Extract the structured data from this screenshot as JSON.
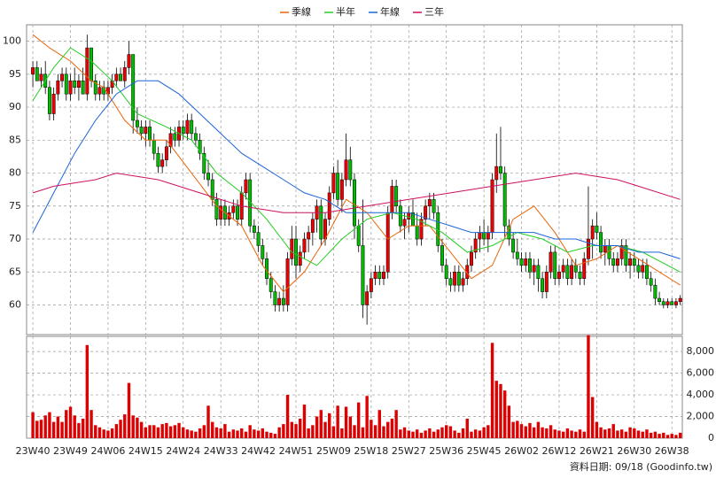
{
  "chart_data": {
    "type": "candlestick",
    "legend": "top",
    "grid": true,
    "xlim": [
      -1.5,
      155.5
    ],
    "xticks": [
      {
        "value": 0,
        "label": "23W40"
      },
      {
        "value": 9,
        "label": "23W49"
      },
      {
        "value": 18,
        "label": "24W06"
      },
      {
        "value": 27,
        "label": "24W15"
      },
      {
        "value": 36,
        "label": "24W24"
      },
      {
        "value": 45,
        "label": "24W33"
      },
      {
        "value": 54,
        "label": "24W42"
      },
      {
        "value": 63,
        "label": "24W51"
      },
      {
        "value": 72,
        "label": "25W09"
      },
      {
        "value": 81,
        "label": "25W18"
      },
      {
        "value": 90,
        "label": "25W27"
      },
      {
        "value": 99,
        "label": "25W36"
      },
      {
        "value": 108,
        "label": "25W45"
      },
      {
        "value": 117,
        "label": "26W02"
      },
      {
        "value": 126,
        "label": "26W12"
      },
      {
        "value": 135,
        "label": "26W21"
      },
      {
        "value": 144,
        "label": "26W30"
      },
      {
        "value": 153,
        "label": "26W38"
      }
    ],
    "ylim": [
      55.5,
      102.5
    ],
    "yticks": [
      60,
      65,
      70,
      75,
      80,
      85,
      90,
      95,
      100
    ],
    "candles": {
      "up_color": "#ee0000",
      "down_color": "#00bb00",
      "values": [
        [
          95,
          97,
          93,
          96
        ],
        [
          96,
          97,
          94,
          94
        ],
        [
          94,
          96,
          93,
          95
        ],
        [
          95,
          97,
          92,
          93
        ],
        [
          93,
          94,
          88,
          89
        ],
        [
          89,
          93,
          88,
          92
        ],
        [
          92,
          95,
          91,
          94
        ],
        [
          94,
          96,
          93,
          95
        ],
        [
          95,
          96,
          91,
          92
        ],
        [
          92,
          95,
          91,
          94
        ],
        [
          94,
          96,
          92,
          93
        ],
        [
          93,
          95,
          91,
          94
        ],
        [
          94,
          96,
          92,
          92
        ],
        [
          92,
          101,
          91,
          99
        ],
        [
          99,
          99,
          93,
          94
        ],
        [
          94,
          95,
          91,
          92
        ],
        [
          92,
          94,
          91,
          93
        ],
        [
          93,
          94,
          91,
          92
        ],
        [
          92,
          94,
          91,
          93
        ],
        [
          93,
          95,
          92,
          94
        ],
        [
          94,
          96,
          93,
          95
        ],
        [
          95,
          96,
          94,
          94
        ],
        [
          94,
          97,
          93,
          96
        ],
        [
          96,
          100,
          95,
          98
        ],
        [
          98,
          98,
          86,
          88
        ],
        [
          88,
          90,
          86,
          87
        ],
        [
          87,
          88,
          85,
          86
        ],
        [
          86,
          88,
          84,
          87
        ],
        [
          87,
          88,
          84,
          85
        ],
        [
          85,
          86,
          82,
          83
        ],
        [
          83,
          84,
          80,
          81
        ],
        [
          81,
          83,
          80,
          82
        ],
        [
          82,
          85,
          81,
          84
        ],
        [
          84,
          87,
          83,
          86
        ],
        [
          86,
          87,
          84,
          85
        ],
        [
          85,
          88,
          84,
          87
        ],
        [
          87,
          88,
          85,
          86
        ],
        [
          86,
          89,
          85,
          88
        ],
        [
          88,
          89,
          85,
          86
        ],
        [
          86,
          87,
          84,
          85
        ],
        [
          85,
          86,
          82,
          83
        ],
        [
          83,
          84,
          79,
          80
        ],
        [
          80,
          82,
          78,
          79
        ],
        [
          79,
          80,
          75,
          76
        ],
        [
          76,
          77,
          72,
          73
        ],
        [
          73,
          76,
          72,
          75
        ],
        [
          75,
          76,
          72,
          73
        ],
        [
          73,
          75,
          72,
          74
        ],
        [
          74,
          76,
          73,
          75
        ],
        [
          75,
          76,
          72,
          73
        ],
        [
          73,
          78,
          72,
          77
        ],
        [
          77,
          80,
          76,
          79
        ],
        [
          79,
          80,
          71,
          72
        ],
        [
          72,
          73,
          70,
          71
        ],
        [
          71,
          72,
          68,
          69
        ],
        [
          69,
          70,
          66,
          67
        ],
        [
          67,
          68,
          63,
          64
        ],
        [
          64,
          65,
          61,
          62
        ],
        [
          62,
          63,
          59,
          60
        ],
        [
          60,
          62,
          59,
          61
        ],
        [
          61,
          63,
          59,
          60
        ],
        [
          60,
          68,
          59,
          67
        ],
        [
          67,
          72,
          66,
          70
        ],
        [
          70,
          72,
          64,
          66
        ],
        [
          66,
          69,
          65,
          68
        ],
        [
          68,
          71,
          67,
          70
        ],
        [
          70,
          72,
          68,
          71
        ],
        [
          71,
          74,
          69,
          73
        ],
        [
          73,
          76,
          71,
          75
        ],
        [
          75,
          76,
          69,
          70
        ],
        [
          70,
          74,
          69,
          73
        ],
        [
          73,
          78,
          72,
          77
        ],
        [
          77,
          81,
          76,
          80
        ],
        [
          80,
          82,
          75,
          76
        ],
        [
          76,
          80,
          74,
          79
        ],
        [
          79,
          86,
          78,
          82
        ],
        [
          82,
          84,
          78,
          79
        ],
        [
          79,
          80,
          70,
          72
        ],
        [
          72,
          73,
          68,
          69
        ],
        [
          69,
          76,
          58,
          60
        ],
        [
          60,
          63,
          57,
          62
        ],
        [
          62,
          65,
          61,
          64
        ],
        [
          64,
          66,
          63,
          65
        ],
        [
          65,
          66,
          63,
          64
        ],
        [
          64,
          66,
          63,
          65
        ],
        [
          65,
          75,
          64,
          74
        ],
        [
          74,
          79,
          73,
          78
        ],
        [
          78,
          79,
          74,
          75
        ],
        [
          75,
          76,
          71,
          72
        ],
        [
          72,
          74,
          70,
          73
        ],
        [
          73,
          75,
          71,
          74
        ],
        [
          74,
          76,
          72,
          72
        ],
        [
          72,
          74,
          69,
          70
        ],
        [
          70,
          74,
          69,
          73
        ],
        [
          73,
          76,
          72,
          75
        ],
        [
          75,
          77,
          73,
          76
        ],
        [
          76,
          77,
          73,
          74
        ],
        [
          74,
          75,
          68,
          69
        ],
        [
          69,
          70,
          65,
          66
        ],
        [
          66,
          67,
          63,
          64
        ],
        [
          64,
          65,
          62,
          63
        ],
        [
          63,
          66,
          62,
          65
        ],
        [
          65,
          66,
          62,
          63
        ],
        [
          63,
          65,
          62,
          64
        ],
        [
          64,
          67,
          63,
          66
        ],
        [
          66,
          69,
          65,
          68
        ],
        [
          68,
          71,
          67,
          70
        ],
        [
          70,
          72,
          68,
          71
        ],
        [
          71,
          73,
          69,
          70
        ],
        [
          70,
          72,
          68,
          71
        ],
        [
          71,
          80,
          70,
          79
        ],
        [
          79,
          86,
          77,
          81
        ],
        [
          81,
          87,
          79,
          80
        ],
        [
          80,
          81,
          70,
          72
        ],
        [
          72,
          73,
          69,
          70
        ],
        [
          70,
          71,
          67,
          68
        ],
        [
          68,
          70,
          66,
          67
        ],
        [
          67,
          68,
          65,
          66
        ],
        [
          66,
          68,
          65,
          67
        ],
        [
          67,
          68,
          64,
          65
        ],
        [
          65,
          67,
          63,
          66
        ],
        [
          66,
          67,
          62,
          64
        ],
        [
          64,
          65,
          61,
          62
        ],
        [
          62,
          66,
          61,
          65
        ],
        [
          65,
          69,
          64,
          68
        ],
        [
          68,
          69,
          63,
          64
        ],
        [
          64,
          66,
          63,
          65
        ],
        [
          65,
          67,
          64,
          66
        ],
        [
          66,
          67,
          63,
          64
        ],
        [
          64,
          67,
          63,
          66
        ],
        [
          66,
          67,
          64,
          65
        ],
        [
          65,
          66,
          63,
          64
        ],
        [
          64,
          68,
          63,
          67
        ],
        [
          67,
          78,
          66,
          70
        ],
        [
          70,
          73,
          67,
          72
        ],
        [
          72,
          74,
          70,
          71
        ],
        [
          71,
          72,
          67,
          68
        ],
        [
          68,
          70,
          66,
          69
        ],
        [
          69,
          70,
          66,
          67
        ],
        [
          67,
          68,
          65,
          66
        ],
        [
          66,
          68,
          65,
          67
        ],
        [
          67,
          70,
          66,
          69
        ],
        [
          69,
          70,
          65,
          66
        ],
        [
          66,
          68,
          64,
          67
        ],
        [
          67,
          68,
          65,
          66
        ],
        [
          66,
          67,
          64,
          65
        ],
        [
          65,
          67,
          64,
          66
        ],
        [
          66,
          67,
          63,
          64
        ],
        [
          64,
          65,
          62,
          63
        ],
        [
          63,
          64,
          60,
          61
        ],
        [
          61,
          62,
          60,
          60.5
        ],
        [
          60.5,
          61,
          59.5,
          60
        ],
        [
          60,
          61,
          59.5,
          60.5
        ],
        [
          60.5,
          61,
          60,
          60
        ],
        [
          60,
          61,
          59.5,
          60.5
        ],
        [
          60.5,
          61.5,
          60,
          61
        ]
      ]
    },
    "series": [
      {
        "name": "季線",
        "color": "#e8650a",
        "x": [
          0,
          4,
          9,
          14,
          17,
          22,
          27,
          32,
          38,
          44,
          50,
          55,
          60,
          65,
          70,
          75,
          80,
          85,
          90,
          95,
          100,
          105,
          110,
          115,
          120,
          125,
          130,
          135,
          140,
          145,
          150,
          155
        ],
        "values": [
          101,
          99,
          97,
          94,
          93,
          88,
          85,
          85,
          80,
          75,
          72,
          66,
          62,
          65,
          70,
          76,
          74,
          70,
          72,
          72,
          68,
          64,
          66,
          73,
          75,
          71,
          66,
          67,
          69,
          67,
          65,
          63
        ]
      },
      {
        "name": "半年",
        "color": "#22cc22",
        "x": [
          0,
          5,
          9,
          14,
          19,
          25,
          32,
          38,
          44,
          50,
          56,
          62,
          68,
          74,
          80,
          86,
          92,
          98,
          104,
          110,
          116,
          122,
          128,
          134,
          140,
          146,
          152,
          155
        ],
        "values": [
          91,
          96,
          99,
          97,
          94,
          89,
          87,
          85,
          80,
          77,
          73,
          68,
          66,
          70,
          73,
          74,
          73,
          71,
          68,
          69,
          71,
          70,
          68,
          69,
          69,
          68,
          66,
          65
        ]
      },
      {
        "name": "年線",
        "color": "#1c64d8",
        "x": [
          0,
          5,
          10,
          15,
          20,
          25,
          30,
          35,
          40,
          45,
          50,
          55,
          60,
          65,
          70,
          75,
          80,
          85,
          90,
          95,
          100,
          105,
          110,
          115,
          120,
          125,
          130,
          135,
          140,
          145,
          150,
          155
        ],
        "values": [
          71,
          77,
          83,
          88,
          92,
          94,
          94,
          92,
          89,
          86,
          83,
          81,
          79,
          77,
          76,
          74,
          74,
          74,
          74,
          73,
          72,
          71,
          71,
          71,
          71,
          70,
          70,
          69,
          69,
          68,
          68,
          67
        ]
      },
      {
        "name": "三年",
        "color": "#cc1060",
        "x": [
          0,
          5,
          15,
          20,
          30,
          40,
          50,
          60,
          70,
          80,
          90,
          100,
          110,
          120,
          130,
          140,
          145,
          155
        ],
        "values": [
          77,
          78,
          79,
          80,
          79,
          77,
          75,
          74,
          74,
          75,
          76,
          77,
          78,
          79,
          80,
          79,
          78,
          76
        ]
      }
    ],
    "volume": {
      "color": "#dd0000",
      "ylim": [
        0,
        9400
      ],
      "yticks": [
        0,
        {
          "value": 2000,
          "label": "2,000"
        },
        {
          "value": 4000,
          "label": "4,000"
        },
        {
          "value": 6000,
          "label": "6,000"
        },
        {
          "value": 8000,
          "label": "8,000"
        }
      ],
      "values": [
        2400,
        1600,
        1700,
        2100,
        2400,
        1500,
        2000,
        1500,
        2600,
        2900,
        2100,
        1400,
        1800,
        8600,
        2600,
        1200,
        1000,
        800,
        700,
        900,
        1300,
        1700,
        2200,
        5100,
        2100,
        1900,
        1500,
        1000,
        1200,
        1200,
        1000,
        1300,
        1400,
        1100,
        1200,
        1400,
        1000,
        800,
        700,
        600,
        900,
        1200,
        3000,
        1500,
        1000,
        900,
        1300,
        600,
        800,
        700,
        900,
        600,
        1200,
        800,
        700,
        900,
        600,
        500,
        400,
        1000,
        1300,
        4000,
        1500,
        1300,
        1800,
        3100,
        900,
        1200,
        2000,
        2600,
        1500,
        2300,
        1100,
        3000,
        900,
        2900,
        2000,
        1200,
        3300,
        1000,
        3900,
        1700,
        1200,
        2600,
        1100,
        1500,
        1800,
        2600,
        800,
        1000,
        700,
        600,
        800,
        500,
        700,
        900,
        600,
        800,
        1000,
        1200,
        1100,
        700,
        500,
        900,
        1800,
        600,
        800,
        700,
        1000,
        1200,
        8800,
        5300,
        5000,
        4400,
        3000,
        1500,
        1600,
        1300,
        1100,
        1400,
        1000,
        1500,
        1000,
        900,
        1200,
        800,
        700,
        600,
        900,
        700,
        600,
        800,
        600,
        9500,
        3800,
        1500,
        1000,
        800,
        900,
        1300,
        700,
        800,
        600,
        1000,
        900,
        700,
        600,
        800,
        500,
        600,
        400,
        500,
        300,
        400,
        300,
        500
      ]
    },
    "source_note": "資料日期: 09/18  (Goodinfo.tw)"
  }
}
